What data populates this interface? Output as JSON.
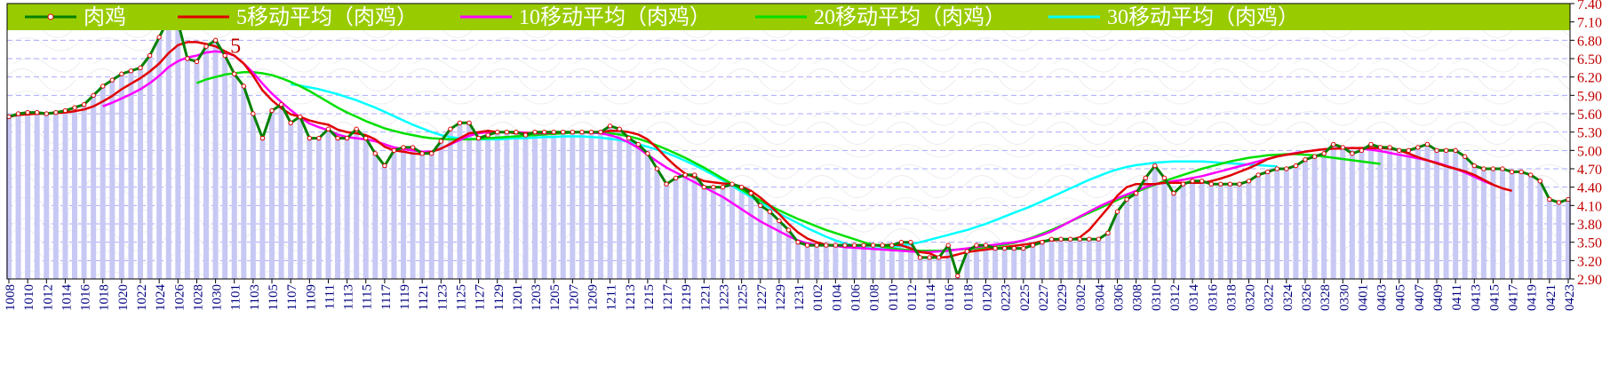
{
  "colors": {
    "legend_bg": "#99cc00",
    "frame": "#000000",
    "grid": "#aaaaff",
    "bars": "#c8c8f4",
    "axis_text": "#000080",
    "price_line": "#008000",
    "ma5": "#e00000",
    "ma10": "#ff00ff",
    "ma20": "#00e000",
    "ma30": "#00ffff",
    "point_fill": "#ffffff",
    "point_stroke": "#e00000"
  },
  "chart_data": {
    "type": "line",
    "legend_placement": "top",
    "grid": true,
    "y_axis_side": "right",
    "ylim": [
      2.9,
      7.4
    ],
    "yticks": [
      "2.90",
      "3.20",
      "3.50",
      "3.80",
      "4.10",
      "4.40",
      "4.70",
      "5.00",
      "5.30",
      "5.60",
      "5.90",
      "6.20",
      "6.50",
      "6.80",
      "7.10",
      "7.40"
    ],
    "x_tick_labels": [
      "1008",
      "1010",
      "1012",
      "1014",
      "1016",
      "1018",
      "1020",
      "1022",
      "1024",
      "1026",
      "1028",
      "1030",
      "1101",
      "1103",
      "1105",
      "1107",
      "1109",
      "1111",
      "1113",
      "1115",
      "1117",
      "1119",
      "1121",
      "1123",
      "1125",
      "1127",
      "1129",
      "1201",
      "1203",
      "1205",
      "1207",
      "1209",
      "1211",
      "1213",
      "1215",
      "1217",
      "1219",
      "1221",
      "1223",
      "1225",
      "1227",
      "1229",
      "1231",
      "0102",
      "0104",
      "0106",
      "0108",
      "0110",
      "0112",
      "0114",
      "0116",
      "0118",
      "0120",
      "0223",
      "0225",
      "0227",
      "0229",
      "0302",
      "0304",
      "0306",
      "0308",
      "0310",
      "0312",
      "0314",
      "0316",
      "0318",
      "0320",
      "0322",
      "0324",
      "0326",
      "0328",
      "0330",
      "0401",
      "0403",
      "0405",
      "0407",
      "0409",
      "0411",
      "0413",
      "0415",
      "0417",
      "0419",
      "0421",
      "0423"
    ],
    "annotation": "5",
    "series": [
      {
        "name": "肉鸡",
        "values": [
          5.55,
          5.6,
          5.62,
          5.62,
          5.6,
          5.62,
          5.65,
          5.7,
          5.75,
          5.9,
          6.05,
          6.15,
          6.25,
          6.3,
          6.35,
          6.55,
          6.85,
          7.15,
          7.1,
          6.5,
          6.45,
          6.7,
          6.8,
          6.55,
          6.25,
          6.05,
          5.6,
          5.2,
          5.65,
          5.75,
          5.45,
          5.55,
          5.2,
          5.2,
          5.35,
          5.2,
          5.2,
          5.35,
          5.2,
          4.95,
          4.75,
          5.0,
          5.05,
          5.05,
          4.95,
          4.95,
          5.15,
          5.35,
          5.45,
          5.45,
          5.2,
          5.25,
          5.3,
          5.3,
          5.3,
          5.25,
          5.3,
          5.3,
          5.3,
          5.3,
          5.3,
          5.3,
          5.3,
          5.3,
          5.4,
          5.35,
          5.2,
          5.1,
          4.95,
          4.7,
          4.45,
          4.55,
          4.6,
          4.6,
          4.4,
          4.4,
          4.4,
          4.45,
          4.4,
          4.3,
          4.1,
          4.0,
          3.85,
          3.7,
          3.5,
          3.45,
          3.45,
          3.45,
          3.45,
          3.45,
          3.45,
          3.45,
          3.45,
          3.45,
          3.45,
          3.5,
          3.5,
          3.25,
          3.25,
          3.25,
          3.45,
          2.95,
          3.35,
          3.45,
          3.45,
          3.4,
          3.4,
          3.4,
          3.4,
          3.45,
          3.5,
          3.55,
          3.55,
          3.55,
          3.55,
          3.55,
          3.55,
          3.65,
          4.0,
          4.2,
          4.3,
          4.55,
          4.75,
          4.55,
          4.3,
          4.45,
          4.5,
          4.5,
          4.45,
          4.45,
          4.45,
          4.45,
          4.5,
          4.6,
          4.65,
          4.7,
          4.7,
          4.75,
          4.85,
          4.9,
          4.95,
          5.1,
          5.05,
          4.95,
          5.0,
          5.1,
          5.05,
          5.05,
          5.0,
          5.0,
          5.05,
          5.1,
          5.0,
          5.0,
          5.0,
          4.9,
          4.75,
          4.7,
          4.7,
          4.7,
          4.65,
          4.65,
          4.6,
          4.5,
          4.2,
          4.15,
          4.2
        ]
      },
      {
        "name": "5移动平均（肉鸡）",
        "values": [
          5.55,
          5.58,
          5.59,
          5.6,
          5.6,
          5.61,
          5.62,
          5.64,
          5.67,
          5.72,
          5.8,
          5.89,
          6.0,
          6.09,
          6.18,
          6.29,
          6.42,
          6.59,
          6.72,
          6.77,
          6.77,
          6.74,
          6.7,
          6.62,
          6.55,
          6.42,
          6.22,
          5.98,
          5.82,
          5.69,
          5.59,
          5.55,
          5.49,
          5.45,
          5.42,
          5.34,
          5.3,
          5.28,
          5.25,
          5.18,
          5.06,
          5.0,
          4.98,
          4.95,
          4.94,
          4.98,
          5.03,
          5.11,
          5.2,
          5.28,
          5.3,
          5.32,
          5.3,
          5.3,
          5.28,
          5.28,
          5.29,
          5.29,
          5.29,
          5.3,
          5.3,
          5.3,
          5.3,
          5.3,
          5.32,
          5.32,
          5.3,
          5.26,
          5.18,
          5.04,
          4.88,
          4.74,
          4.62,
          4.56,
          4.5,
          4.48,
          4.46,
          4.45,
          4.41,
          4.34,
          4.23,
          4.1,
          3.96,
          3.8,
          3.66,
          3.56,
          3.5,
          3.46,
          3.45,
          3.45,
          3.45,
          3.45,
          3.45,
          3.45,
          3.46,
          3.45,
          3.4,
          3.34,
          3.32,
          3.25,
          3.26,
          3.3,
          3.34,
          3.36,
          3.38,
          3.4,
          3.42,
          3.44,
          3.46,
          3.48,
          3.52,
          3.53,
          3.54,
          3.54,
          3.58,
          3.7,
          3.88,
          4.06,
          4.26,
          4.4,
          4.45,
          4.45,
          4.45,
          4.47,
          4.47,
          4.47,
          4.47,
          4.47,
          4.5,
          4.54,
          4.59,
          4.65,
          4.71,
          4.78,
          4.86,
          4.9,
          4.93,
          4.95,
          4.98,
          5.0,
          5.02,
          5.03,
          5.03,
          5.04,
          5.04,
          5.04,
          5.04,
          5.03,
          5.0,
          4.95,
          4.89,
          4.84,
          4.79,
          4.74,
          4.7,
          4.66,
          4.6,
          4.52,
          4.44,
          4.38,
          4.34
        ]
      },
      {
        "name": "10移动平均（肉鸡）",
        "values": [
          null,
          null,
          null,
          null,
          null,
          null,
          null,
          null,
          null,
          null,
          5.72,
          5.78,
          5.85,
          5.92,
          6.0,
          6.1,
          6.22,
          6.36,
          6.46,
          6.52,
          6.55,
          6.6,
          6.62,
          6.6,
          6.55,
          6.42,
          6.27,
          6.09,
          5.93,
          5.79,
          5.66,
          5.54,
          5.44,
          5.38,
          5.33,
          5.26,
          5.22,
          5.2,
          5.18,
          5.15,
          5.1,
          5.05,
          5.02,
          5.0,
          4.98,
          4.98,
          5.03,
          5.1,
          5.17,
          5.24,
          5.28,
          5.3,
          5.3,
          5.3,
          5.3,
          5.29,
          5.28,
          5.28,
          5.29,
          5.3,
          5.3,
          5.3,
          5.29,
          5.28,
          5.25,
          5.2,
          5.13,
          5.04,
          4.93,
          4.82,
          4.72,
          4.64,
          4.56,
          4.48,
          4.4,
          4.32,
          4.24,
          4.14,
          4.04,
          3.94,
          3.84,
          3.76,
          3.68,
          3.6,
          3.53,
          3.48,
          3.46,
          3.45,
          3.44,
          3.42,
          3.41,
          3.4,
          3.39,
          3.38,
          3.37,
          3.36,
          3.35,
          3.34,
          3.34,
          3.35,
          3.36,
          3.38,
          3.4,
          3.42,
          3.44,
          3.46,
          3.48,
          3.5,
          3.53,
          3.57,
          3.62,
          3.68,
          3.76,
          3.84,
          3.92,
          4.0,
          4.08,
          4.15,
          4.22,
          4.28,
          4.34,
          4.4,
          4.45,
          4.47,
          4.5,
          4.52,
          4.55,
          4.58,
          4.62,
          4.66,
          4.7,
          4.74,
          4.78,
          4.82,
          4.86,
          4.9,
          4.93,
          4.96,
          4.98,
          5.0,
          5.02,
          5.03,
          5.04,
          5.04,
          5.03,
          5.01,
          4.99,
          4.96,
          4.93,
          4.9,
          4.87,
          4.84,
          4.8,
          4.75,
          4.7,
          4.64,
          4.57,
          4.5,
          4.44
        ]
      },
      {
        "name": "20移动平均（肉鸡）",
        "values": [
          null,
          null,
          null,
          null,
          null,
          null,
          null,
          null,
          null,
          null,
          null,
          null,
          null,
          null,
          null,
          null,
          null,
          null,
          null,
          null,
          6.1,
          6.16,
          6.2,
          6.24,
          6.26,
          6.28,
          6.28,
          6.26,
          6.23,
          6.18,
          6.12,
          6.05,
          5.97,
          5.88,
          5.79,
          5.7,
          5.62,
          5.55,
          5.48,
          5.42,
          5.36,
          5.32,
          5.28,
          5.25,
          5.22,
          5.2,
          5.19,
          5.18,
          5.18,
          5.18,
          5.19,
          5.2,
          5.21,
          5.22,
          5.23,
          5.24,
          5.25,
          5.26,
          5.27,
          5.28,
          5.29,
          5.3,
          5.3,
          5.29,
          5.28,
          5.26,
          5.23,
          5.19,
          5.14,
          5.08,
          5.02,
          4.95,
          4.88,
          4.8,
          4.72,
          4.63,
          4.54,
          4.45,
          4.36,
          4.27,
          4.18,
          4.1,
          4.02,
          3.95,
          3.88,
          3.82,
          3.76,
          3.7,
          3.65,
          3.6,
          3.55,
          3.5,
          3.46,
          3.43,
          3.4,
          3.38,
          3.37,
          3.36,
          3.36,
          3.36,
          3.37,
          3.38,
          3.39,
          3.4,
          3.42,
          3.44,
          3.46,
          3.49,
          3.53,
          3.58,
          3.64,
          3.7,
          3.77,
          3.84,
          3.91,
          3.98,
          4.05,
          4.12,
          4.19,
          4.26,
          4.32,
          4.38,
          4.44,
          4.5,
          4.55,
          4.6,
          4.65,
          4.7,
          4.74,
          4.78,
          4.82,
          4.85,
          4.88,
          4.9,
          4.92,
          4.93,
          4.94,
          4.94,
          4.93,
          4.92,
          4.9,
          4.88,
          4.86,
          4.84,
          4.82,
          4.8,
          4.78
        ]
      },
      {
        "name": "30移动平均（肉鸡）",
        "values": [
          null,
          null,
          null,
          null,
          null,
          null,
          null,
          null,
          null,
          null,
          null,
          null,
          null,
          null,
          null,
          null,
          null,
          null,
          null,
          null,
          null,
          null,
          null,
          null,
          null,
          null,
          null,
          null,
          null,
          null,
          6.08,
          6.06,
          6.03,
          6.0,
          5.96,
          5.92,
          5.87,
          5.82,
          5.76,
          5.7,
          5.63,
          5.56,
          5.49,
          5.42,
          5.36,
          5.3,
          5.25,
          5.22,
          5.2,
          5.19,
          5.18,
          5.18,
          5.18,
          5.19,
          5.2,
          5.2,
          5.21,
          5.22,
          5.22,
          5.23,
          5.23,
          5.23,
          5.22,
          5.21,
          5.19,
          5.17,
          5.14,
          5.1,
          5.06,
          5.01,
          4.96,
          4.9,
          4.83,
          4.76,
          4.68,
          4.6,
          4.51,
          4.42,
          4.33,
          4.24,
          4.15,
          4.06,
          3.97,
          3.89,
          3.81,
          3.73,
          3.66,
          3.59,
          3.53,
          3.48,
          3.44,
          3.41,
          3.4,
          3.4,
          3.42,
          3.44,
          3.47,
          3.5,
          3.54,
          3.58,
          3.62,
          3.66,
          3.7,
          3.75,
          3.8,
          3.86,
          3.92,
          3.98,
          4.04,
          4.1,
          4.17,
          4.24,
          4.31,
          4.38,
          4.45,
          4.52,
          4.58,
          4.64,
          4.69,
          4.73,
          4.76,
          4.78,
          4.8,
          4.81,
          4.82,
          4.82,
          4.82,
          4.82,
          4.81,
          4.8,
          4.79,
          4.78,
          4.77,
          4.76,
          4.75,
          4.74
        ]
      }
    ]
  }
}
